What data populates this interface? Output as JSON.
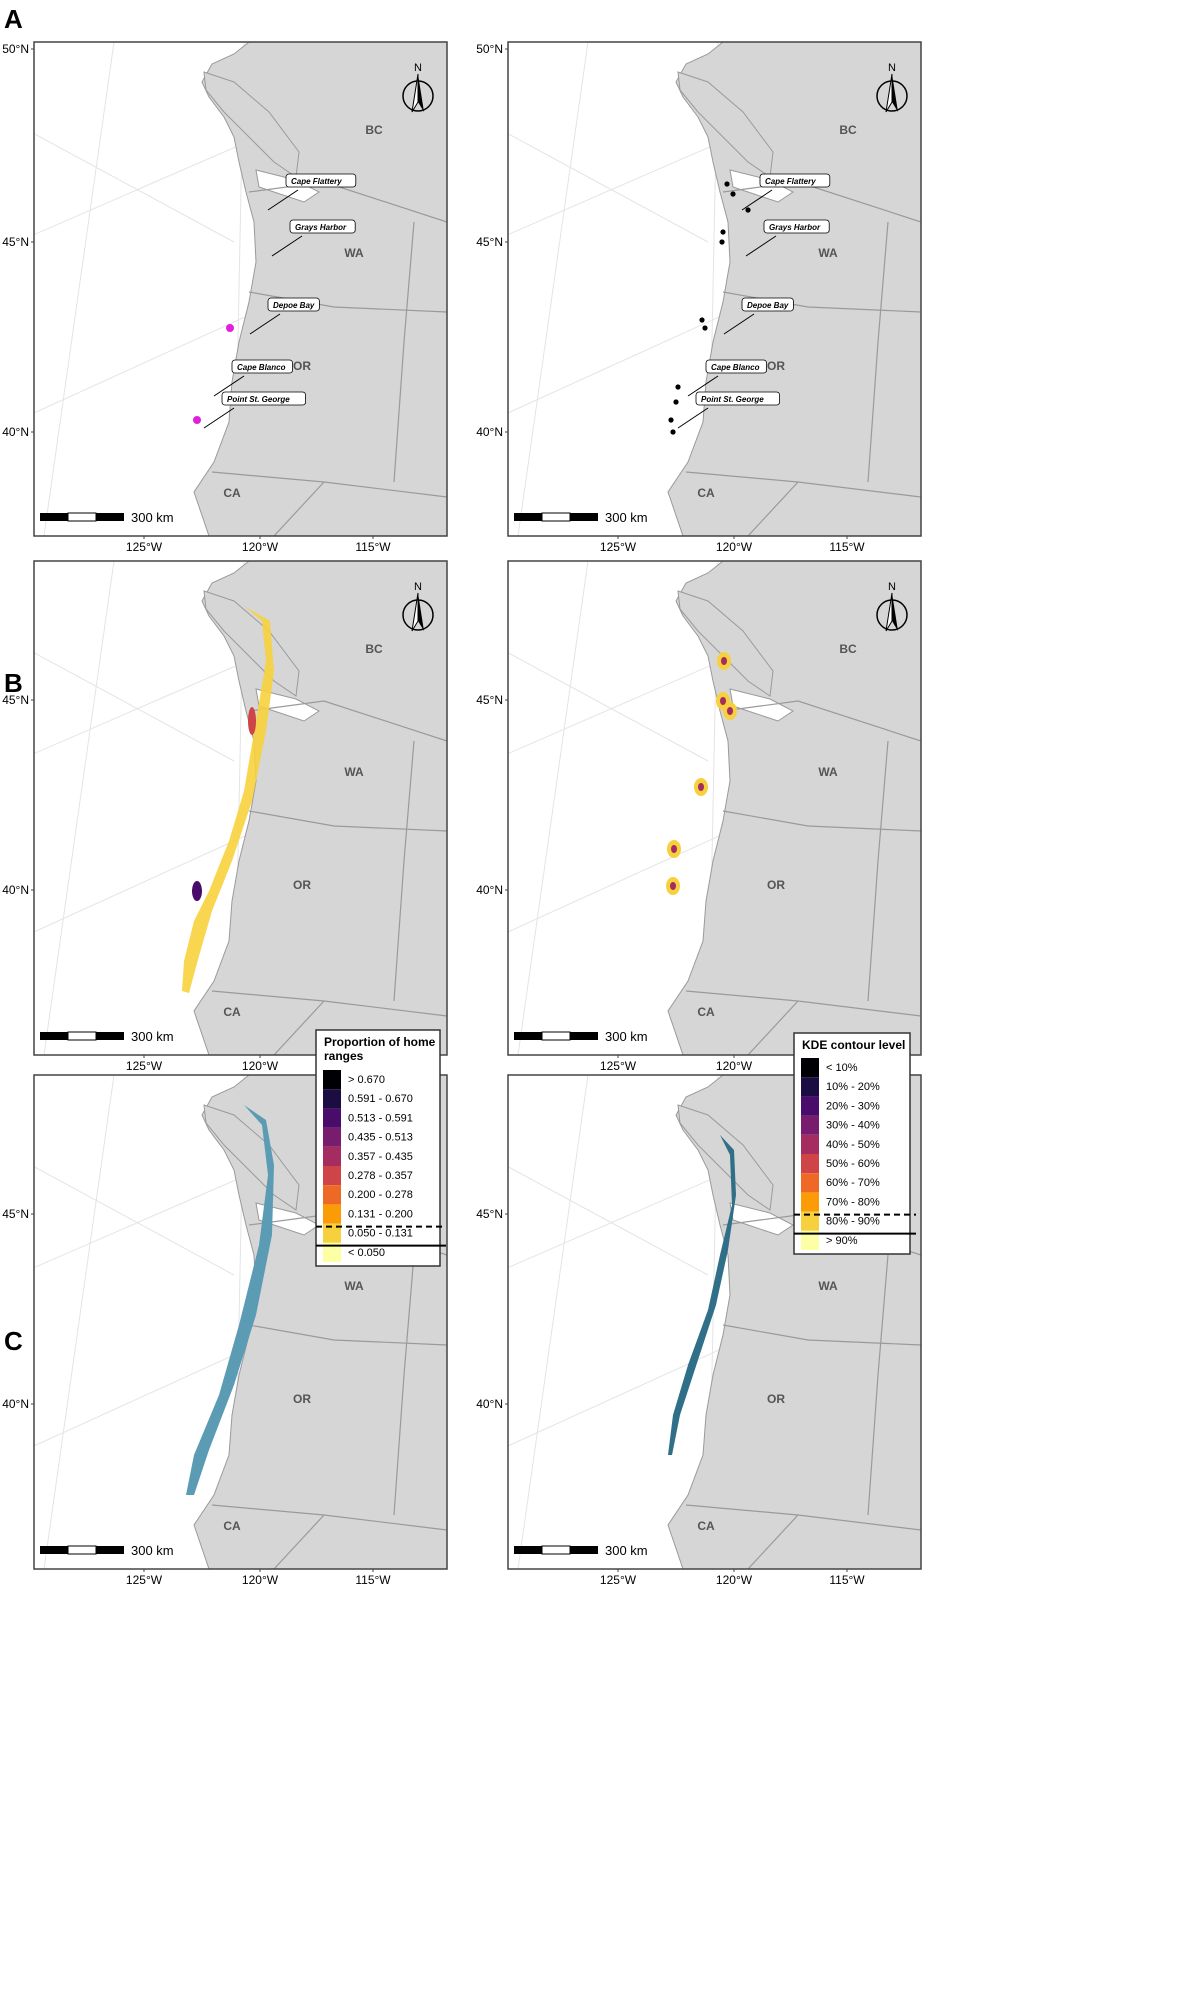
{
  "panels": [
    {
      "letter": "A",
      "x": 0,
      "y": 0
    },
    {
      "letter": "B",
      "x": 0,
      "y": 662
    },
    {
      "letter": "C",
      "x": 0,
      "y": 1320
    }
  ],
  "map_labels": {
    "lat": [
      "50°N",
      "45°N",
      "40°N"
    ],
    "lon": [
      "125°W",
      "120°W",
      "115°W"
    ],
    "regions": [
      "BC",
      "WA",
      "OR",
      "CA"
    ],
    "north": "N",
    "scale": "300 km"
  },
  "sites": [
    "Cape Flattery",
    "Grays Harbor",
    "Depoe Bay",
    "Cape Blanco",
    "Point St. George"
  ],
  "legend_home": {
    "title_line1": "Proportion of home",
    "title_line2": "ranges",
    "items": [
      "> 0.670",
      "0.591 - 0.670",
      "0.513 - 0.591",
      "0.435 - 0.513",
      "0.357 - 0.435",
      "0.278 - 0.357",
      "0.200 - 0.278",
      "0.131 - 0.200",
      "0.050 - 0.131",
      "< 0.050"
    ],
    "colors": [
      "#000004",
      "#1b0c41",
      "#4a0c6b",
      "#781c6d",
      "#a52c60",
      "#cf4446",
      "#ed6925",
      "#fb9b06",
      "#f7d13d",
      "#fcffa4"
    ]
  },
  "legend_kde": {
    "title": "KDE contour level",
    "items": [
      "< 10%",
      "10% - 20%",
      "20% - 30%",
      "30% - 40%",
      "40% - 50%",
      "50% - 60%",
      "60% - 70%",
      "70% - 80%",
      "80% - 90%",
      "> 90%"
    ],
    "colors": [
      "#000004",
      "#1b0c41",
      "#4a0c6b",
      "#781c6d",
      "#a52c60",
      "#cf4446",
      "#ed6925",
      "#fb9b06",
      "#f7d13d",
      "#fcffa4"
    ]
  },
  "colors": {
    "land": "#d6d6d6",
    "border": "#9a9a9a",
    "detection": "#e020e0",
    "habitat": "#5b9cb4",
    "habitat_dark": "#2f6f87"
  }
}
